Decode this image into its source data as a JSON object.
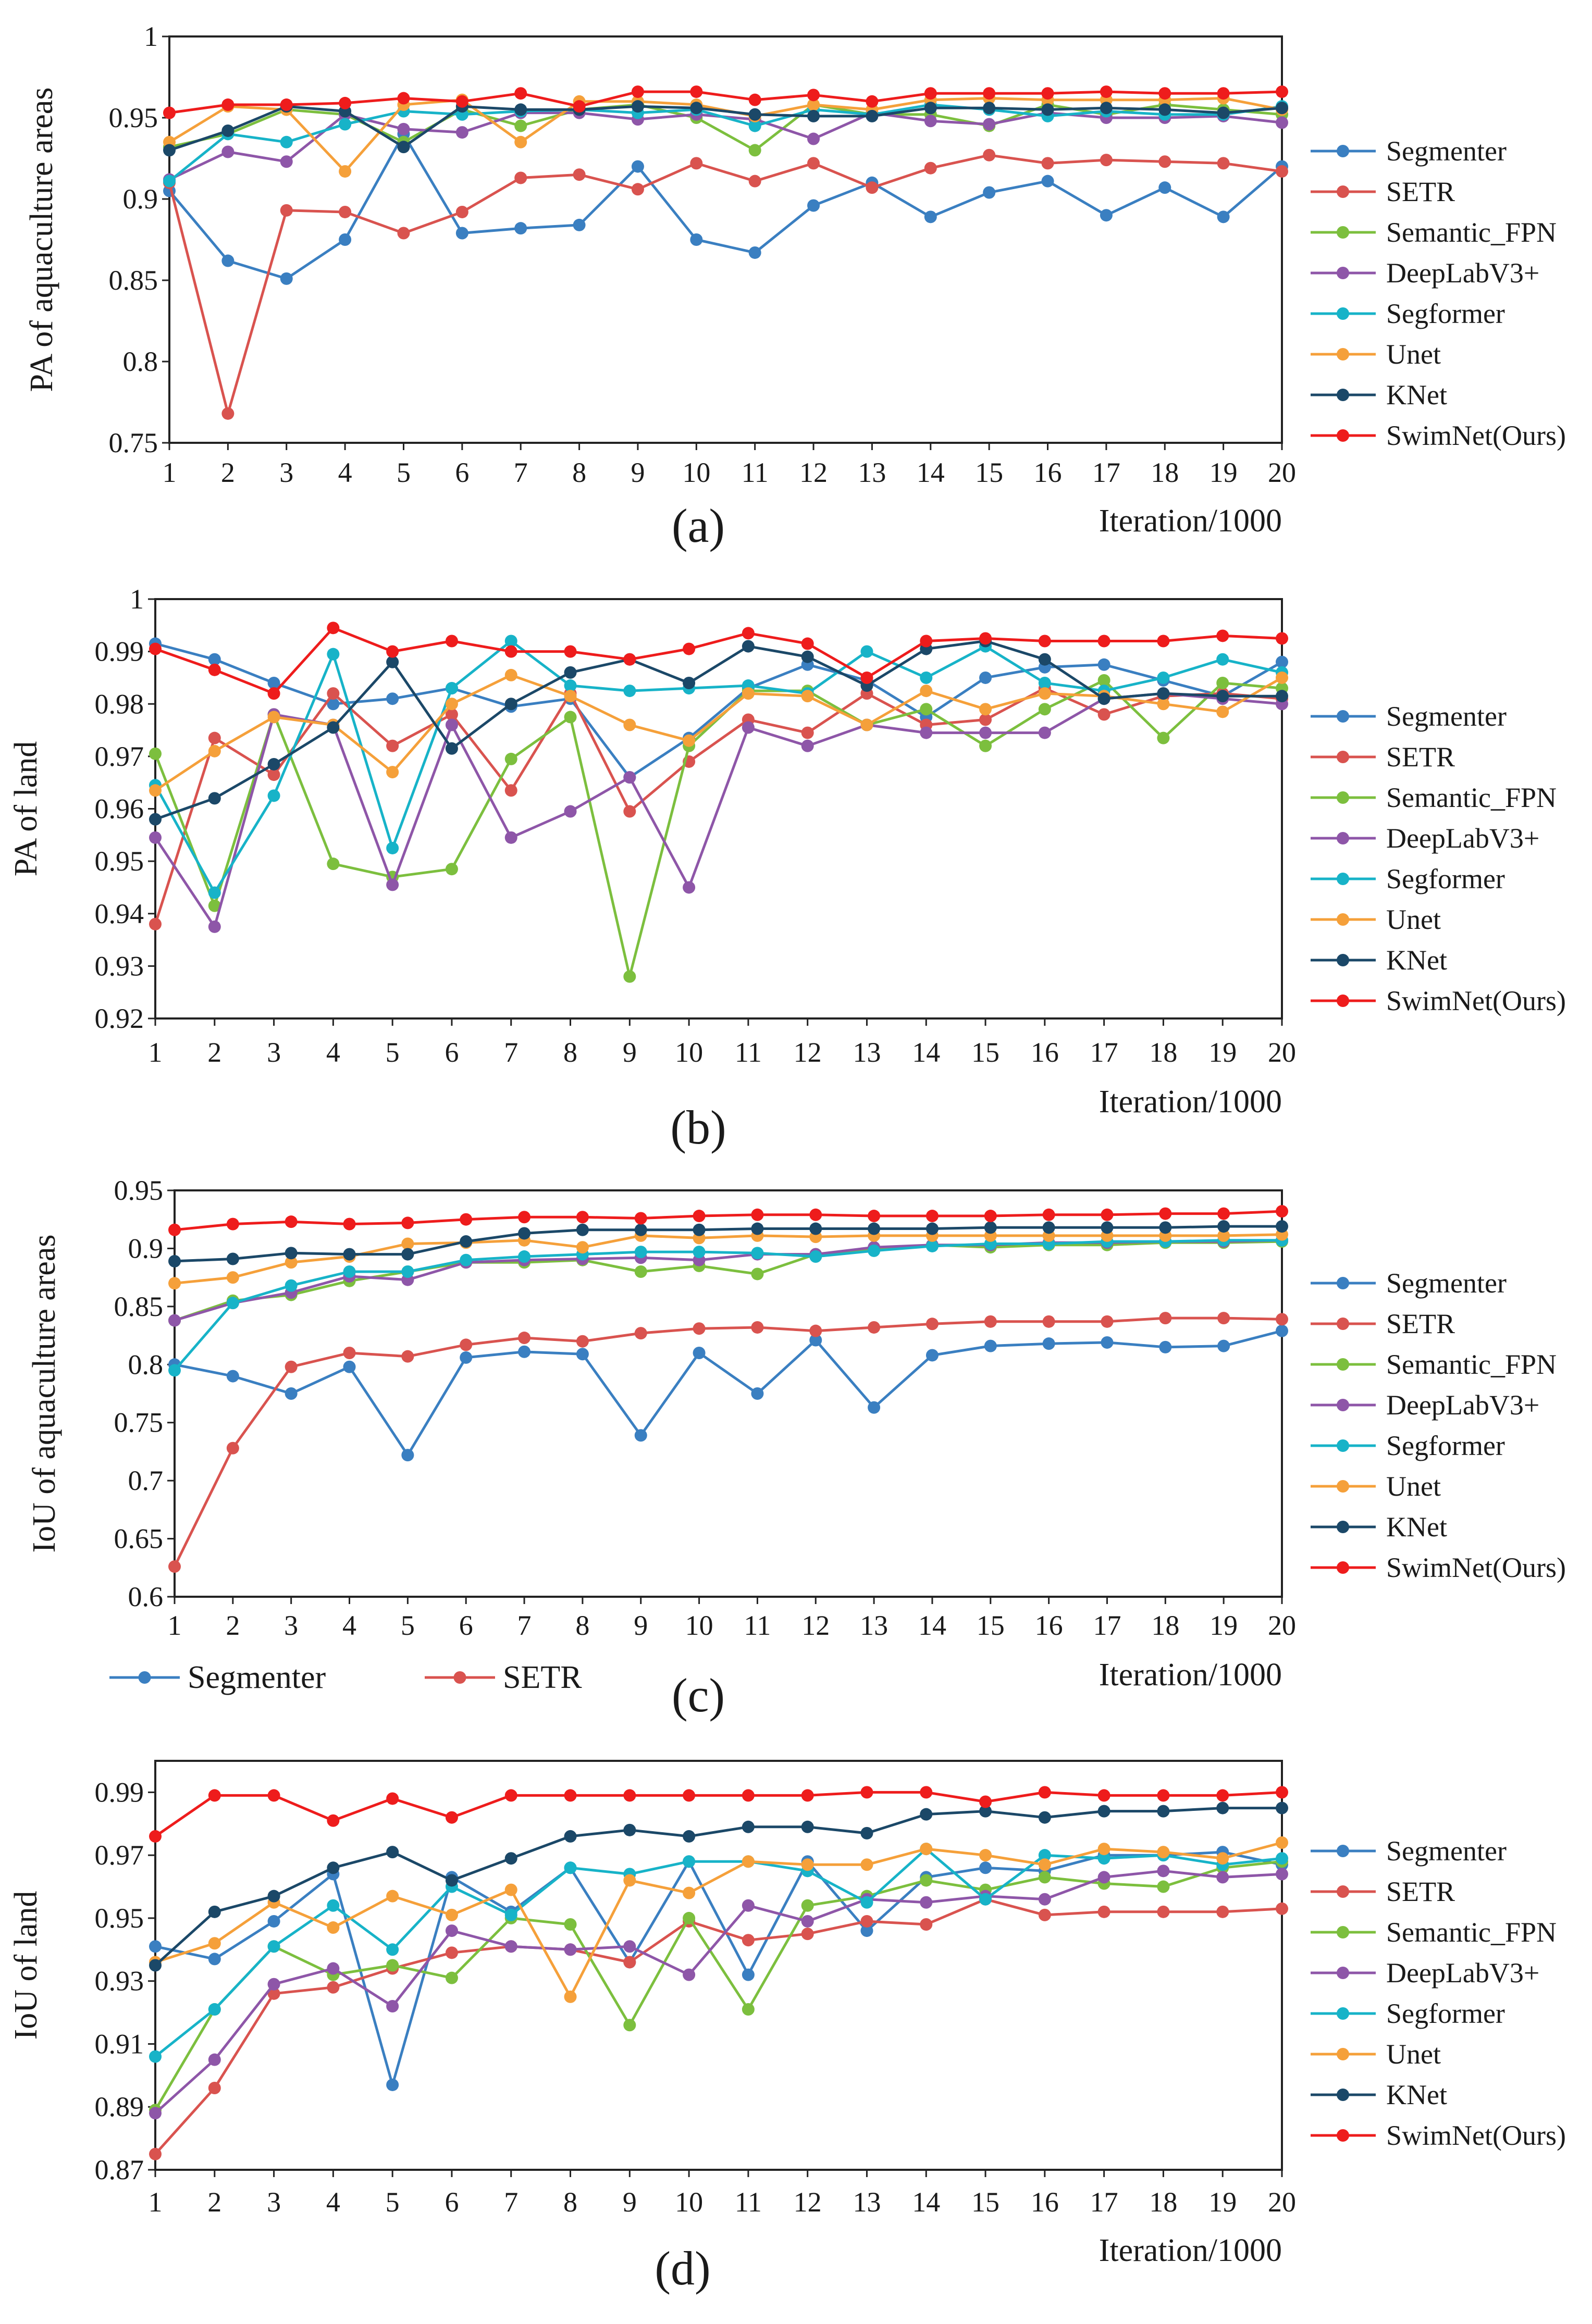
{
  "colors": {
    "Segmenter": "#3a7fc1",
    "SETR": "#d9534f",
    "Semantic_FPN": "#7cbf3e",
    "DeepLabV3+": "#8e56a8",
    "Segformer": "#17b3c8",
    "Unet": "#f5a03a",
    "KNet": "#1b4868",
    "SwimNet(Ours)": "#ee1c1c"
  },
  "chart_data": [
    {
      "type": "line",
      "caption": "(a)",
      "ylabel": "PA of aquaculture areas",
      "xlabel": "Iteration/1000",
      "ylim": [
        0.75,
        1
      ],
      "yticks": [
        0.75,
        0.8,
        0.85,
        0.9,
        0.95,
        1
      ],
      "ytick_labels": [
        "0.75",
        "0.8",
        "0.85",
        "0.9",
        "0.95",
        "1"
      ],
      "categories": [
        "1",
        "2",
        "3",
        "4",
        "5",
        "6",
        "7",
        "8",
        "9",
        "10",
        "11",
        "12",
        "13",
        "14",
        "15",
        "16",
        "17",
        "18",
        "19",
        "20"
      ],
      "legend": [
        "Segmenter",
        "SETR",
        "Semantic_FPN",
        "DeepLabV3+",
        "Segformer",
        "Unet",
        "KNet",
        "SwimNet(Ours)"
      ],
      "series": [
        {
          "name": "Segmenter",
          "values": [
            0.905,
            0.862,
            0.851,
            0.875,
            0.94,
            0.879,
            0.882,
            0.884,
            0.92,
            0.875,
            0.867,
            0.896,
            0.91,
            0.889,
            0.904,
            0.911,
            0.89,
            0.907,
            0.889,
            0.92
          ]
        },
        {
          "name": "SETR",
          "values": [
            0.91,
            0.768,
            0.893,
            0.892,
            0.879,
            0.892,
            0.913,
            0.915,
            0.906,
            0.922,
            0.911,
            0.922,
            0.907,
            0.919,
            0.927,
            0.922,
            0.924,
            0.923,
            0.922,
            0.917
          ]
        },
        {
          "name": "Semantic_FPN",
          "values": [
            0.932,
            0.94,
            0.955,
            0.952,
            0.935,
            0.955,
            0.945,
            0.955,
            0.958,
            0.95,
            0.93,
            0.958,
            0.952,
            0.952,
            0.945,
            0.958,
            0.952,
            0.958,
            0.955,
            0.952
          ]
        },
        {
          "name": "DeepLabV3+",
          "values": [
            0.912,
            0.929,
            0.923,
            0.952,
            0.943,
            0.941,
            0.953,
            0.953,
            0.949,
            0.952,
            0.949,
            0.937,
            0.953,
            0.948,
            0.946,
            0.953,
            0.95,
            0.95,
            0.951,
            0.947
          ]
        },
        {
          "name": "Segformer",
          "values": [
            0.911,
            0.94,
            0.935,
            0.946,
            0.954,
            0.952,
            0.954,
            0.955,
            0.953,
            0.955,
            0.945,
            0.955,
            0.952,
            0.958,
            0.955,
            0.951,
            0.954,
            0.952,
            0.952,
            0.957
          ]
        },
        {
          "name": "Unet",
          "values": [
            0.935,
            0.957,
            0.955,
            0.917,
            0.958,
            0.961,
            0.935,
            0.96,
            0.96,
            0.958,
            0.951,
            0.958,
            0.955,
            0.961,
            0.962,
            0.961,
            0.961,
            0.961,
            0.962,
            0.955
          ]
        },
        {
          "name": "KNet",
          "values": [
            0.93,
            0.942,
            0.957,
            0.954,
            0.932,
            0.957,
            0.955,
            0.955,
            0.957,
            0.956,
            0.952,
            0.951,
            0.951,
            0.956,
            0.956,
            0.955,
            0.956,
            0.955,
            0.953,
            0.956
          ]
        },
        {
          "name": "SwimNet(Ours)",
          "values": [
            0.953,
            0.958,
            0.958,
            0.959,
            0.962,
            0.96,
            0.965,
            0.957,
            0.966,
            0.966,
            0.961,
            0.964,
            0.96,
            0.965,
            0.965,
            0.965,
            0.966,
            0.965,
            0.965,
            0.966
          ]
        }
      ]
    },
    {
      "type": "line",
      "caption": "(b)",
      "ylabel": "PA of land",
      "xlabel": "Iteration/1000",
      "ylim": [
        0.92,
        1
      ],
      "yticks": [
        0.92,
        0.93,
        0.94,
        0.95,
        0.96,
        0.97,
        0.98,
        0.99,
        1
      ],
      "ytick_labels": [
        "0.92",
        "0.93",
        "0.94",
        "0.95",
        "0.96",
        "0.97",
        "0.98",
        "0.99",
        "1"
      ],
      "categories": [
        "1",
        "2",
        "3",
        "4",
        "5",
        "6",
        "7",
        "8",
        "9",
        "10",
        "11",
        "12",
        "13",
        "14",
        "15",
        "16",
        "17",
        "18",
        "19",
        "20"
      ],
      "legend": [
        "Segmenter",
        "SETR",
        "Semantic_FPN",
        "DeepLabV3+",
        "Segformer",
        "Unet",
        "KNet",
        "SwimNet(Ours)"
      ],
      "series": [
        {
          "name": "Segmenter",
          "values": [
            0.9915,
            0.9885,
            0.984,
            0.98,
            0.981,
            0.983,
            0.9795,
            0.981,
            0.966,
            0.9735,
            0.983,
            0.9875,
            0.9845,
            0.9775,
            0.985,
            0.987,
            0.9875,
            0.9845,
            0.9815,
            0.988
          ]
        },
        {
          "name": "SETR",
          "values": [
            0.938,
            0.9735,
            0.9665,
            0.982,
            0.972,
            0.978,
            0.9635,
            0.982,
            0.9595,
            0.969,
            0.977,
            0.9745,
            0.982,
            0.976,
            0.977,
            0.983,
            0.978,
            0.9815,
            0.982,
            0.981
          ]
        },
        {
          "name": "Semantic_FPN",
          "values": [
            0.9705,
            0.9415,
            0.978,
            0.9495,
            0.947,
            0.9485,
            0.9695,
            0.9775,
            0.928,
            0.972,
            0.9825,
            0.9825,
            0.976,
            0.979,
            0.972,
            0.979,
            0.9845,
            0.9735,
            0.984,
            0.983
          ]
        },
        {
          "name": "DeepLabV3+",
          "values": [
            0.9545,
            0.9375,
            0.978,
            0.976,
            0.9455,
            0.976,
            0.9545,
            0.9595,
            0.966,
            0.945,
            0.9755,
            0.972,
            0.976,
            0.9745,
            0.9745,
            0.9745,
            0.981,
            0.982,
            0.981,
            0.98
          ]
        },
        {
          "name": "Segformer",
          "values": [
            0.9645,
            0.944,
            0.9625,
            0.9895,
            0.9525,
            0.983,
            0.992,
            0.9835,
            0.9825,
            0.983,
            0.9835,
            0.982,
            0.99,
            0.985,
            0.991,
            0.984,
            0.9825,
            0.985,
            0.9885,
            0.986
          ]
        },
        {
          "name": "Unet",
          "values": [
            0.9635,
            0.971,
            0.9775,
            0.976,
            0.967,
            0.98,
            0.9855,
            0.9815,
            0.976,
            0.973,
            0.982,
            0.9815,
            0.976,
            0.9825,
            0.979,
            0.982,
            0.9815,
            0.98,
            0.9785,
            0.985
          ]
        },
        {
          "name": "KNet",
          "values": [
            0.958,
            0.962,
            0.9685,
            0.9755,
            0.988,
            0.9715,
            0.98,
            0.986,
            0.9885,
            0.984,
            0.991,
            0.989,
            0.9835,
            0.9905,
            0.992,
            0.9885,
            0.981,
            0.982,
            0.9815,
            0.9815
          ]
        },
        {
          "name": "SwimNet(Ours)",
          "values": [
            0.9905,
            0.9865,
            0.982,
            0.9945,
            0.99,
            0.992,
            0.99,
            0.99,
            0.9885,
            0.9905,
            0.9935,
            0.9915,
            0.985,
            0.992,
            0.9925,
            0.992,
            0.992,
            0.992,
            0.993,
            0.9925
          ]
        }
      ]
    },
    {
      "type": "line",
      "caption": "(c)",
      "ylabel": "IoU of aquaculture areas",
      "xlabel": "Iteration/1000",
      "ylim": [
        0.6,
        0.95
      ],
      "yticks": [
        0.6,
        0.65,
        0.7,
        0.75,
        0.8,
        0.85,
        0.9,
        0.95
      ],
      "ytick_labels": [
        "0.6",
        "0.65",
        "0.7",
        "0.75",
        "0.8",
        "0.85",
        "0.9",
        "0.95"
      ],
      "categories": [
        "1",
        "2",
        "3",
        "4",
        "5",
        "6",
        "7",
        "8",
        "9",
        "10",
        "11",
        "12",
        "13",
        "14",
        "15",
        "16",
        "17",
        "18",
        "19",
        "20"
      ],
      "legend": [
        "Segmenter",
        "SETR",
        "Semantic_FPN",
        "DeepLabV3+",
        "Segformer",
        "Unet",
        "KNet",
        "SwimNet(Ours)"
      ],
      "bottom_legend": [
        "Segmenter",
        "SETR"
      ],
      "series": [
        {
          "name": "Segmenter",
          "values": [
            0.8,
            0.79,
            0.775,
            0.798,
            0.722,
            0.806,
            0.811,
            0.809,
            0.739,
            0.81,
            0.775,
            0.821,
            0.763,
            0.808,
            0.816,
            0.818,
            0.819,
            0.815,
            0.816,
            0.829
          ]
        },
        {
          "name": "SETR",
          "values": [
            0.626,
            0.728,
            0.798,
            0.81,
            0.807,
            0.817,
            0.823,
            0.82,
            0.827,
            0.831,
            0.832,
            0.829,
            0.832,
            0.835,
            0.837,
            0.837,
            0.837,
            0.84,
            0.84,
            0.839
          ]
        },
        {
          "name": "Semantic_FPN",
          "values": [
            0.838,
            0.855,
            0.86,
            0.872,
            0.88,
            0.888,
            0.888,
            0.89,
            0.88,
            0.885,
            0.878,
            0.895,
            0.9,
            0.903,
            0.901,
            0.903,
            0.903,
            0.905,
            0.905,
            0.906
          ]
        },
        {
          "name": "DeepLabV3+",
          "values": [
            0.838,
            0.853,
            0.862,
            0.876,
            0.873,
            0.888,
            0.89,
            0.891,
            0.892,
            0.89,
            0.895,
            0.895,
            0.901,
            0.903,
            0.903,
            0.905,
            0.905,
            0.906,
            0.906,
            0.907
          ]
        },
        {
          "name": "Segformer",
          "values": [
            0.795,
            0.853,
            0.868,
            0.88,
            0.88,
            0.89,
            0.893,
            0.895,
            0.897,
            0.897,
            0.896,
            0.893,
            0.898,
            0.902,
            0.904,
            0.904,
            0.906,
            0.906,
            0.907,
            0.907
          ]
        },
        {
          "name": "Unet",
          "values": [
            0.87,
            0.875,
            0.888,
            0.893,
            0.904,
            0.905,
            0.907,
            0.901,
            0.911,
            0.909,
            0.911,
            0.91,
            0.911,
            0.911,
            0.911,
            0.911,
            0.911,
            0.911,
            0.911,
            0.912
          ]
        },
        {
          "name": "KNet",
          "values": [
            0.889,
            0.891,
            0.896,
            0.895,
            0.895,
            0.906,
            0.913,
            0.916,
            0.916,
            0.916,
            0.917,
            0.917,
            0.917,
            0.917,
            0.918,
            0.918,
            0.918,
            0.918,
            0.919,
            0.919
          ]
        },
        {
          "name": "SwimNet(Ours)",
          "values": [
            0.916,
            0.921,
            0.923,
            0.921,
            0.922,
            0.925,
            0.927,
            0.927,
            0.926,
            0.928,
            0.929,
            0.929,
            0.928,
            0.928,
            0.928,
            0.929,
            0.929,
            0.93,
            0.93,
            0.932
          ]
        }
      ]
    },
    {
      "type": "line",
      "caption": "(d)",
      "ylabel": "IoU of land",
      "xlabel": "Iteration/1000",
      "ylim": [
        0.87,
        1.0
      ],
      "yticks": [
        0.87,
        0.89,
        0.91,
        0.93,
        0.95,
        0.97,
        0.99
      ],
      "ytick_labels": [
        "0.87",
        "0.89",
        "0.91",
        "0.93",
        "0.95",
        "0.97",
        "0.99"
      ],
      "categories": [
        "1",
        "2",
        "3",
        "4",
        "5",
        "6",
        "7",
        "8",
        "9",
        "10",
        "11",
        "12",
        "13",
        "14",
        "15",
        "16",
        "17",
        "18",
        "19",
        "20"
      ],
      "legend": [
        "Segmenter",
        "SETR",
        "Semantic_FPN",
        "DeepLabV3+",
        "Segformer",
        "Unet",
        "KNet",
        "SwimNet(Ours)"
      ],
      "series": [
        {
          "name": "Segmenter",
          "values": [
            0.941,
            0.937,
            0.949,
            0.964,
            0.897,
            0.963,
            0.952,
            0.966,
            0.936,
            0.968,
            0.932,
            0.968,
            0.946,
            0.963,
            0.966,
            0.965,
            0.97,
            0.97,
            0.971,
            0.967
          ]
        },
        {
          "name": "SETR",
          "values": [
            0.875,
            0.896,
            0.926,
            0.928,
            0.934,
            0.939,
            0.941,
            0.94,
            0.936,
            0.949,
            0.943,
            0.945,
            0.949,
            0.948,
            0.956,
            0.951,
            0.952,
            0.952,
            0.952,
            0.953
          ]
        },
        {
          "name": "Semantic_FPN",
          "values": [
            0.889,
            0.921,
            0.941,
            0.932,
            0.935,
            0.931,
            0.95,
            0.948,
            0.916,
            0.95,
            0.921,
            0.954,
            0.957,
            0.962,
            0.959,
            0.963,
            0.961,
            0.96,
            0.966,
            0.968
          ]
        },
        {
          "name": "DeepLabV3+",
          "values": [
            0.888,
            0.905,
            0.929,
            0.934,
            0.922,
            0.946,
            0.941,
            0.94,
            0.941,
            0.932,
            0.954,
            0.949,
            0.956,
            0.955,
            0.957,
            0.956,
            0.963,
            0.965,
            0.963,
            0.964
          ]
        },
        {
          "name": "Segformer",
          "values": [
            0.906,
            0.921,
            0.941,
            0.954,
            0.94,
            0.96,
            0.951,
            0.966,
            0.964,
            0.968,
            0.968,
            0.965,
            0.955,
            0.972,
            0.956,
            0.97,
            0.969,
            0.97,
            0.967,
            0.969
          ]
        },
        {
          "name": "Unet",
          "values": [
            0.936,
            0.942,
            0.955,
            0.947,
            0.957,
            0.951,
            0.959,
            0.925,
            0.962,
            0.958,
            0.968,
            0.967,
            0.967,
            0.972,
            0.97,
            0.967,
            0.972,
            0.971,
            0.969,
            0.974
          ]
        },
        {
          "name": "KNet",
          "values": [
            0.935,
            0.952,
            0.957,
            0.966,
            0.971,
            0.962,
            0.969,
            0.976,
            0.978,
            0.976,
            0.979,
            0.979,
            0.977,
            0.983,
            0.984,
            0.982,
            0.984,
            0.984,
            0.985,
            0.985
          ]
        },
        {
          "name": "SwimNet(Ours)",
          "values": [
            0.976,
            0.989,
            0.989,
            0.981,
            0.988,
            0.982,
            0.989,
            0.989,
            0.989,
            0.989,
            0.989,
            0.989,
            0.99,
            0.99,
            0.987,
            0.99,
            0.989,
            0.989,
            0.989,
            0.99
          ]
        }
      ]
    }
  ]
}
